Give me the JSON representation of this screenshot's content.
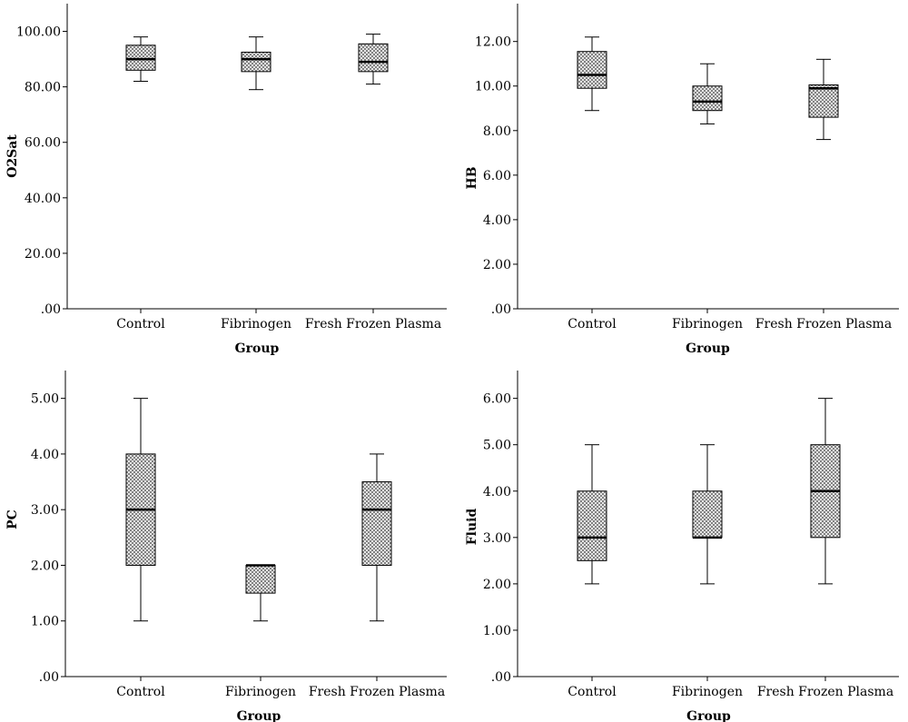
{
  "chart_data": [
    {
      "type": "box",
      "xlabel": "Group",
      "ylabel": "O2Sat",
      "categories": [
        "Control",
        "Fibrinogen",
        "Fresh Frozen Plasma"
      ],
      "ylim": [
        0,
        110
      ],
      "yticks": [
        0,
        20,
        40,
        60,
        80,
        100
      ],
      "ytick_labels": [
        ".00",
        "20.00",
        "40.00",
        "60.00",
        "80.00",
        "100.00"
      ],
      "boxes": [
        {
          "min": 82,
          "q1": 86,
          "median": 90,
          "q3": 95,
          "max": 98
        },
        {
          "min": 79,
          "q1": 85.5,
          "median": 90,
          "q3": 92.5,
          "max": 98
        },
        {
          "min": 81,
          "q1": 85.5,
          "median": 89,
          "q3": 95.5,
          "max": 99
        }
      ]
    },
    {
      "type": "box",
      "xlabel": "Group",
      "ylabel": "HB",
      "categories": [
        "Control",
        "Fibrinogen",
        "Fresh Frozen Plasma"
      ],
      "ylim": [
        0,
        13.7
      ],
      "yticks": [
        0,
        2,
        4,
        6,
        8,
        10,
        12
      ],
      "ytick_labels": [
        ".00",
        "2.00",
        "4.00",
        "6.00",
        "8.00",
        "10.00",
        "12.00"
      ],
      "boxes": [
        {
          "min": 8.9,
          "q1": 9.9,
          "median": 10.5,
          "q3": 11.55,
          "max": 12.2
        },
        {
          "min": 8.3,
          "q1": 8.9,
          "median": 9.3,
          "q3": 10.0,
          "max": 11.0
        },
        {
          "min": 7.6,
          "q1": 8.6,
          "median": 9.9,
          "q3": 10.05,
          "max": 11.2
        }
      ]
    },
    {
      "type": "box",
      "xlabel": "Group",
      "ylabel": "PC",
      "categories": [
        "Control",
        "Fibrinogen",
        "Fresh Frozen Plasma"
      ],
      "ylim": [
        0,
        5.5
      ],
      "yticks": [
        0,
        1,
        2,
        3,
        4,
        5
      ],
      "ytick_labels": [
        ".00",
        "1.00",
        "2.00",
        "3.00",
        "4.00",
        "5.00"
      ],
      "boxes": [
        {
          "min": 1,
          "q1": 2,
          "median": 3,
          "q3": 4,
          "max": 5
        },
        {
          "min": 1,
          "q1": 1.5,
          "median": 2,
          "q3": 2,
          "max": 2
        },
        {
          "min": 1,
          "q1": 2,
          "median": 3,
          "q3": 3.5,
          "max": 4
        }
      ]
    },
    {
      "type": "box",
      "xlabel": "Group",
      "ylabel": "Fluid",
      "categories": [
        "Control",
        "Fibrinogen",
        "Fresh Frozen Plasma"
      ],
      "ylim": [
        0,
        6.6
      ],
      "yticks": [
        0,
        1,
        2,
        3,
        4,
        5,
        6
      ],
      "ytick_labels": [
        ".00",
        "1.00",
        "2.00",
        "3.00",
        "4.00",
        "5.00",
        "6.00"
      ],
      "boxes": [
        {
          "min": 2,
          "q1": 2.5,
          "median": 3,
          "q3": 4,
          "max": 5
        },
        {
          "min": 2,
          "q1": 3,
          "median": 3,
          "q3": 4,
          "max": 5
        },
        {
          "min": 2,
          "q1": 3,
          "median": 4,
          "q3": 5,
          "max": 6
        }
      ]
    }
  ]
}
